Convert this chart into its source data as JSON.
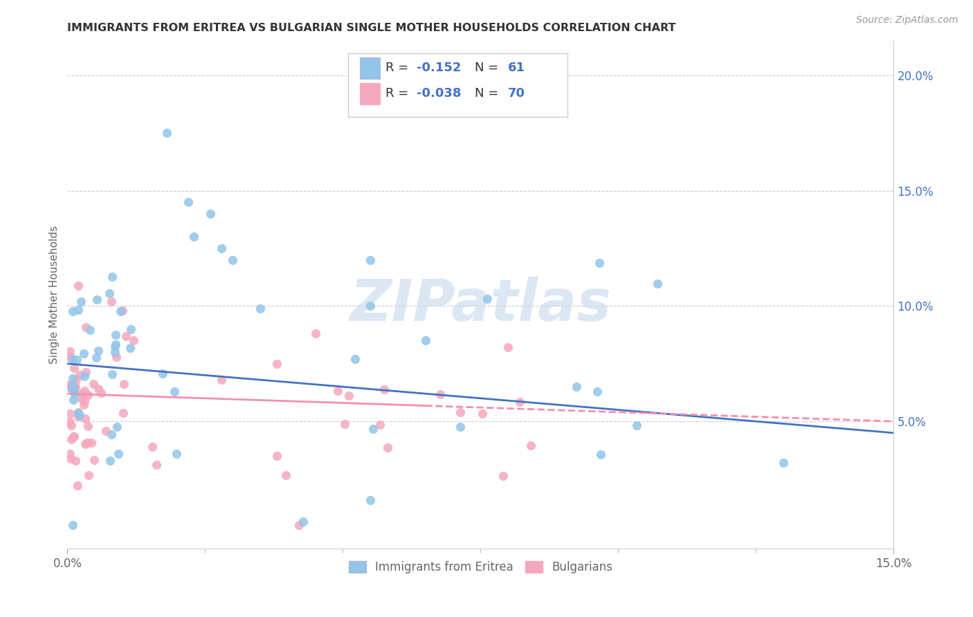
{
  "title": "IMMIGRANTS FROM ERITREA VS BULGARIAN SINGLE MOTHER HOUSEHOLDS CORRELATION CHART",
  "source": "Source: ZipAtlas.com",
  "ylabel": "Single Mother Households",
  "xlim": [
    0.0,
    0.15
  ],
  "ylim": [
    -0.005,
    0.215
  ],
  "right_yticks": [
    0.05,
    0.1,
    0.15,
    0.2
  ],
  "right_yticklabels": [
    "5.0%",
    "10.0%",
    "15.0%",
    "20.0%"
  ],
  "series1_color": "#92C5E8",
  "series2_color": "#F4A8BE",
  "series1_label": "Immigrants from Eritrea",
  "series2_label": "Bulgarians",
  "line1_color": "#4472C4",
  "line2_color": "#F48FB1",
  "watermark_color": "#C5D8EE",
  "legend_r1_val": "-0.152",
  "legend_n1_val": "61",
  "legend_r2_val": "-0.038",
  "legend_n2_val": "70",
  "line1_y0": 0.075,
  "line1_y1": 0.045,
  "line2_y0": 0.062,
  "line2_y1": 0.05
}
